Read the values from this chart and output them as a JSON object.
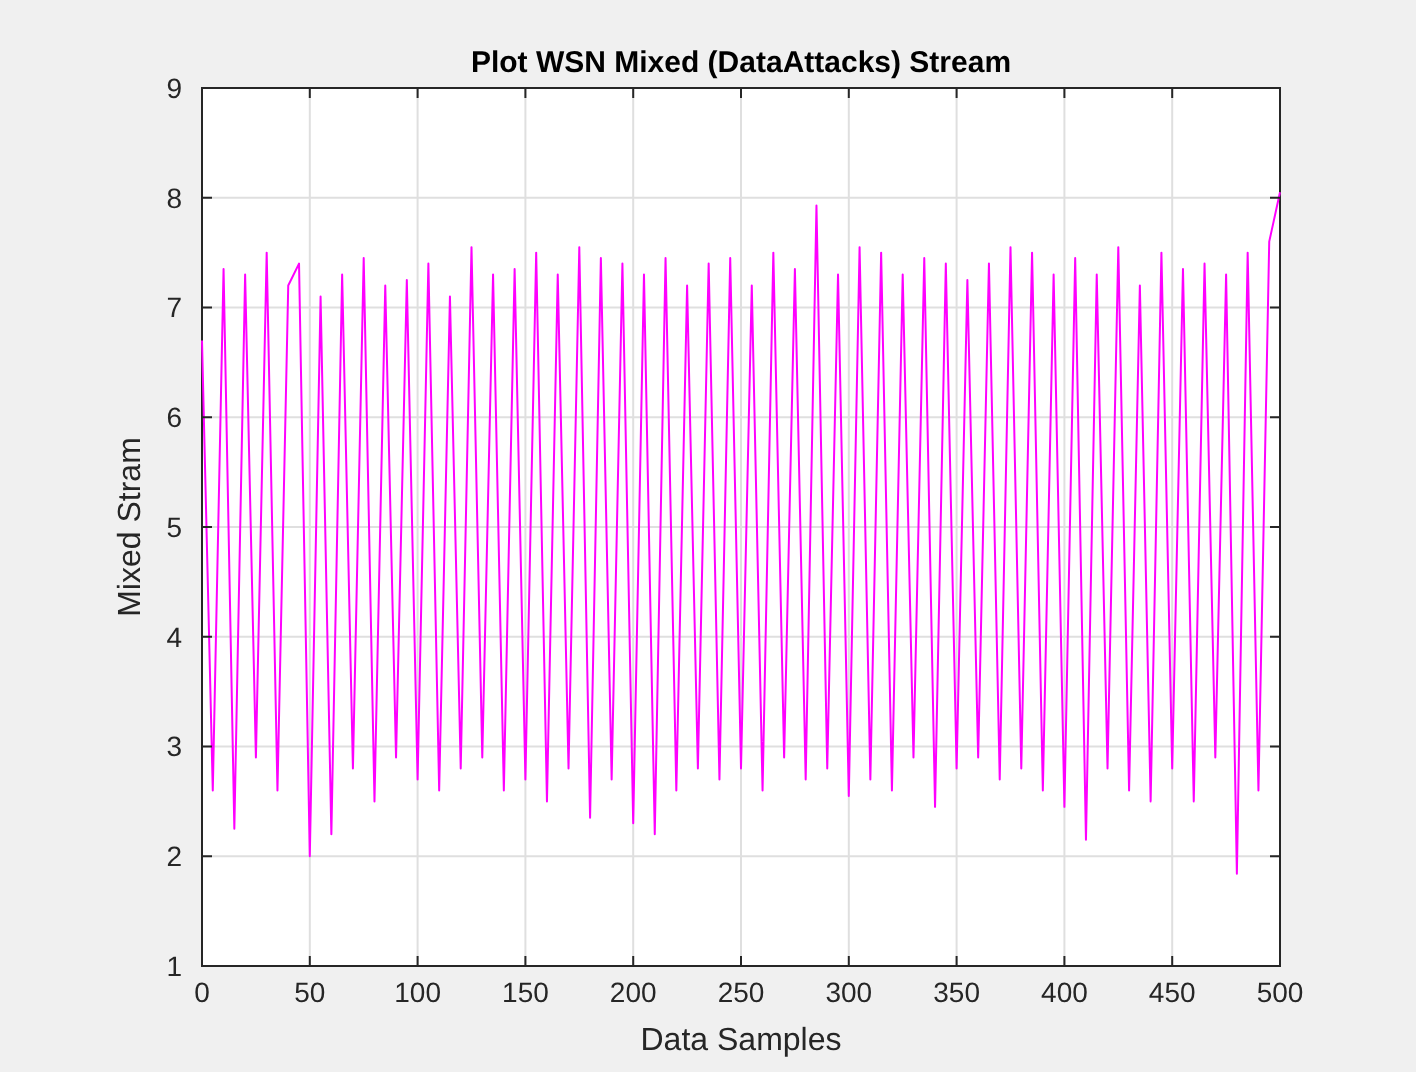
{
  "chart_data": {
    "type": "line",
    "title": "Plot WSN Mixed (DataAttacks) Stream",
    "xlabel": "Data Samples",
    "ylabel": "Mixed Stram",
    "xlim": [
      0,
      500
    ],
    "xticks": [
      0,
      50,
      100,
      150,
      200,
      250,
      300,
      350,
      400,
      450,
      500
    ],
    "ylim": [
      1,
      9
    ],
    "yticks": [
      1,
      2,
      3,
      4,
      5,
      6,
      7,
      8,
      9
    ],
    "grid": true,
    "x": [
      0,
      5,
      10,
      15,
      20,
      25,
      30,
      35,
      40,
      45,
      50,
      55,
      60,
      65,
      70,
      75,
      80,
      85,
      90,
      95,
      100,
      105,
      110,
      115,
      120,
      125,
      130,
      135,
      140,
      145,
      150,
      155,
      160,
      165,
      170,
      175,
      180,
      185,
      190,
      195,
      200,
      205,
      210,
      215,
      220,
      225,
      230,
      235,
      240,
      245,
      250,
      255,
      260,
      265,
      270,
      275,
      280,
      285,
      290,
      295,
      300,
      305,
      310,
      315,
      320,
      325,
      330,
      335,
      340,
      345,
      350,
      355,
      360,
      365,
      370,
      375,
      380,
      385,
      390,
      395,
      400,
      405,
      410,
      415,
      420,
      425,
      430,
      435,
      440,
      445,
      450,
      455,
      460,
      465,
      470,
      475,
      480,
      485,
      490,
      495,
      500
    ],
    "series": [
      {
        "color": "#ff00ff",
        "values": [
          6.7,
          2.6,
          7.35,
          2.25,
          7.3,
          2.9,
          7.5,
          2.6,
          7.2,
          7.4,
          2.0,
          7.1,
          2.2,
          7.3,
          2.8,
          7.45,
          2.5,
          7.2,
          2.9,
          7.25,
          2.7,
          7.4,
          2.6,
          7.1,
          2.8,
          7.55,
          2.9,
          7.3,
          2.6,
          7.35,
          2.7,
          7.5,
          2.5,
          7.3,
          2.8,
          7.55,
          2.35,
          7.45,
          2.7,
          7.4,
          2.3,
          7.3,
          2.2,
          7.45,
          2.6,
          7.2,
          2.8,
          7.4,
          2.7,
          7.45,
          2.8,
          7.2,
          2.6,
          7.5,
          2.9,
          7.35,
          2.7,
          7.93,
          2.8,
          7.3,
          2.55,
          7.55,
          2.7,
          7.5,
          2.6,
          7.3,
          2.9,
          7.45,
          2.45,
          7.4,
          2.8,
          7.25,
          2.9,
          7.4,
          2.7,
          7.55,
          2.8,
          7.5,
          2.6,
          7.3,
          2.45,
          7.45,
          2.15,
          7.3,
          2.8,
          7.55,
          2.6,
          7.2,
          2.5,
          7.5,
          2.8,
          7.35,
          2.5,
          7.4,
          2.9,
          7.3,
          1.84,
          7.5,
          2.6,
          7.6,
          8.05
        ]
      }
    ]
  }
}
